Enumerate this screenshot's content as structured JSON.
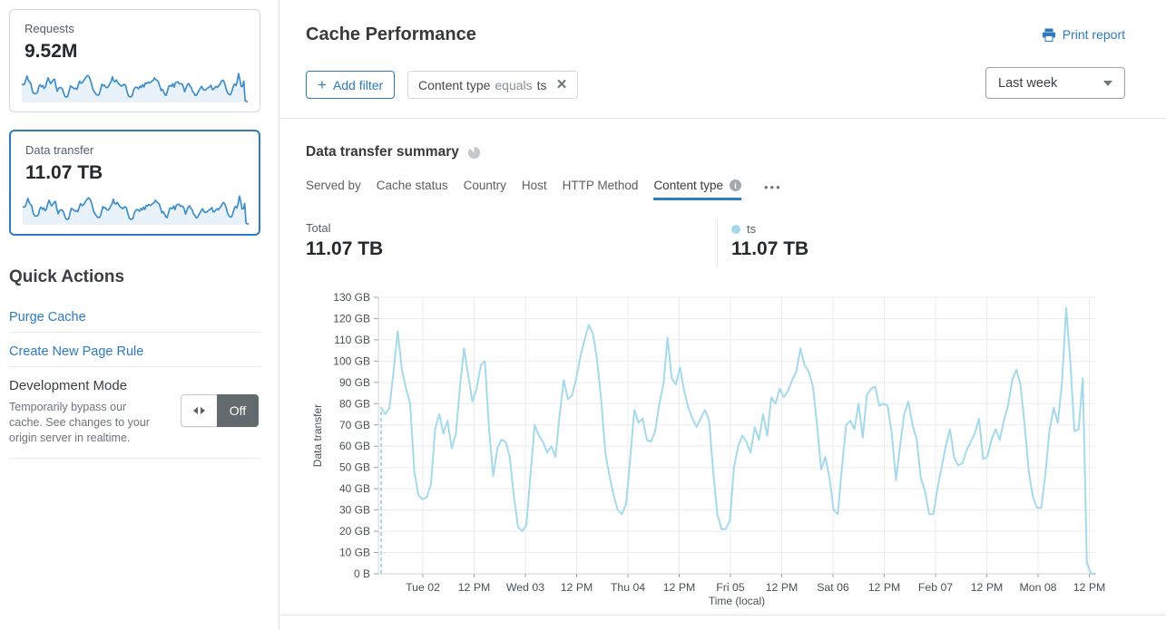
{
  "colors": {
    "accent_blue": "#2c7bbf",
    "selected_card_border": "#2f7bbf",
    "chart_line": "#a5d9ec",
    "sparkline": "#3e8fc9",
    "legend_dot": "#a5d8ea",
    "toggle_off_bg": "#636a6e"
  },
  "sidebar": {
    "metric_cards": [
      {
        "label": "Requests",
        "value": "9.52M",
        "selected": false
      },
      {
        "label": "Data transfer",
        "value": "11.07 TB",
        "selected": true
      }
    ],
    "quick_actions": {
      "title": "Quick Actions",
      "purge_cache": "Purge Cache",
      "create_page_rule": "Create New Page Rule",
      "dev_mode": {
        "label": "Development Mode",
        "description": "Temporarily bypass our cache. See changes to your origin server in realtime.",
        "state": "Off"
      }
    }
  },
  "header": {
    "title": "Cache Performance",
    "print_label": "Print report",
    "add_filter": {
      "plus": "+",
      "label": "Add filter"
    },
    "filter_chip": {
      "field": "Content type",
      "operator": "equals",
      "value": "ts",
      "close": "×"
    },
    "time_range": "Last week"
  },
  "summary": {
    "title": "Data transfer summary",
    "tabs": [
      "Served by",
      "Cache status",
      "Country",
      "Host",
      "HTTP Method",
      "Content type"
    ],
    "active_tab": "Content type",
    "info_glyph": "i",
    "more_glyph": "•••",
    "total_label": "Total",
    "total_value": "11.07 TB",
    "series_label": "ts",
    "series_value": "11.07 TB"
  },
  "chart_data": {
    "type": "line",
    "title": "Data transfer summary",
    "xlabel": "Time (local)",
    "ylabel": "Data transfer",
    "unit": "GB",
    "ylim": [
      0,
      130
    ],
    "grid": true,
    "legend_position": "above-right",
    "start_dashed": true,
    "ytick_labels": [
      "0 B",
      "10 GB",
      "20 GB",
      "30 GB",
      "40 GB",
      "50 GB",
      "60 GB",
      "70 GB",
      "80 GB",
      "90 GB",
      "100 GB",
      "110 GB",
      "120 GB",
      "130 GB"
    ],
    "xtick_labels": [
      "Tue 02",
      "12 PM",
      "Wed 03",
      "12 PM",
      "Thu 04",
      "12 PM",
      "Fri 05",
      "12 PM",
      "Sat 06",
      "12 PM",
      "Feb 07",
      "12 PM",
      "Mon 08",
      "12 PM"
    ],
    "series": [
      {
        "name": "ts",
        "color": "#a5d9ec",
        "values": [
          78,
          75,
          78,
          95,
          114,
          96,
          87,
          80,
          48,
          37,
          35,
          36,
          42,
          68,
          75,
          66,
          72,
          59,
          66,
          88,
          106,
          93,
          81,
          87,
          98,
          100,
          68,
          46,
          59,
          63,
          62,
          55,
          36,
          22,
          20,
          23,
          47,
          70,
          65,
          62,
          57,
          60,
          55,
          75,
          91,
          82,
          84,
          92,
          102,
          110,
          117,
          113,
          101,
          82,
          57,
          46,
          37,
          30,
          28,
          33,
          54,
          77,
          71,
          73,
          63,
          62,
          67,
          80,
          89,
          111,
          92,
          89,
          97,
          86,
          78,
          73,
          69,
          73,
          77,
          72,
          48,
          28,
          21,
          21,
          25,
          50,
          60,
          65,
          62,
          57,
          69,
          63,
          75,
          65,
          83,
          80,
          87,
          83,
          86,
          91,
          95,
          106,
          98,
          95,
          88,
          70,
          49,
          55,
          45,
          30,
          28,
          50,
          70,
          72,
          68,
          80,
          64,
          84,
          87,
          88,
          79,
          80,
          79,
          66,
          44,
          60,
          75,
          81,
          70,
          63,
          45,
          39,
          28,
          28,
          40,
          50,
          60,
          68,
          55,
          51,
          52,
          58,
          62,
          66,
          73,
          54,
          55,
          63,
          68,
          63,
          72,
          79,
          91,
          96,
          89,
          70,
          48,
          36,
          31,
          31,
          47,
          68,
          78,
          71,
          90,
          125,
          100,
          67,
          68,
          92,
          5,
          0,
          0
        ]
      }
    ]
  }
}
